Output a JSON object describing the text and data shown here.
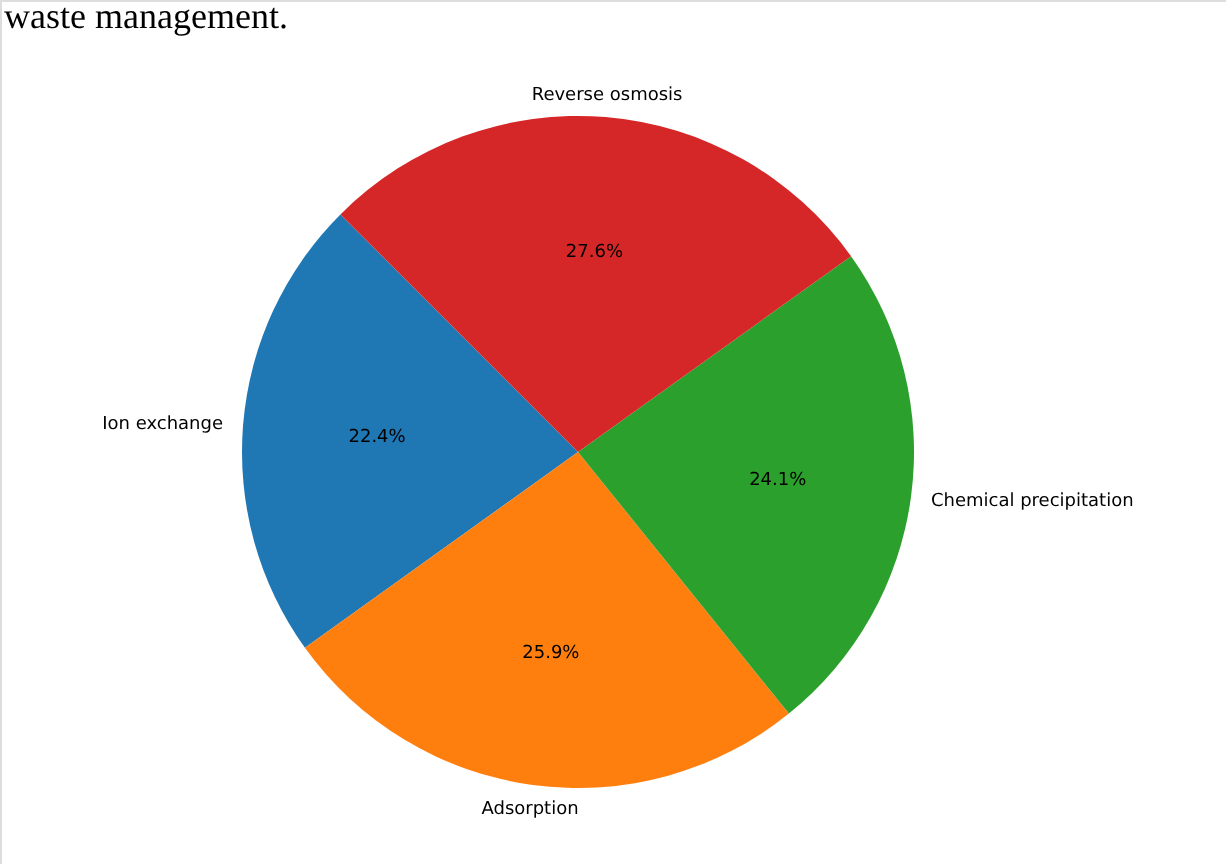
{
  "chart_data": {
    "type": "pie",
    "title": "waste management.",
    "categories": [
      "Ion exchange",
      "Adsorption",
      "Chemical precipitation",
      "Reverse osmosis"
    ],
    "values": [
      22.4,
      25.9,
      24.1,
      27.6
    ],
    "colors": [
      "#1f77b4",
      "#ff7f0e",
      "#2ca02c",
      "#d62728"
    ],
    "value_labels": [
      "22.4%",
      "25.9%",
      "24.1%",
      "27.6%"
    ]
  }
}
